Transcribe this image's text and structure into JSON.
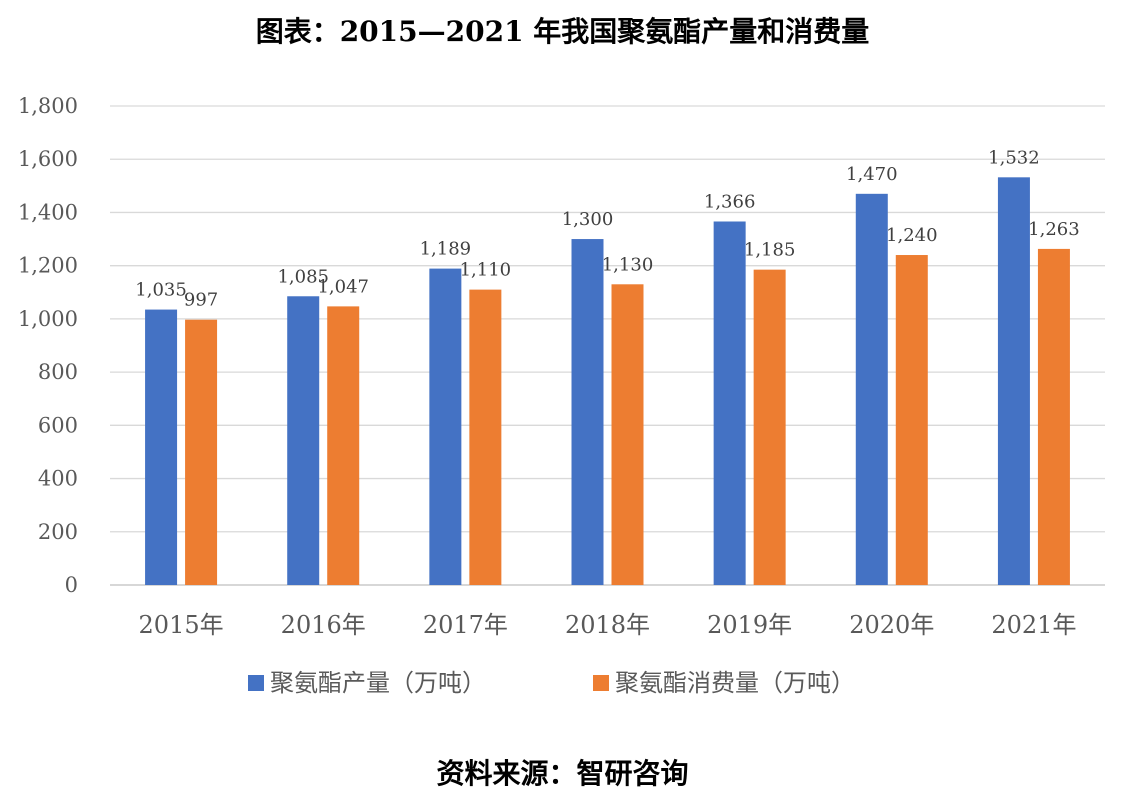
{
  "title": "图表：2015—2021 年我国聚氨酯产量和消费量",
  "source": "资料来源：智研咨询",
  "chart_data": {
    "type": "bar",
    "categories": [
      "2015年",
      "2016年",
      "2017年",
      "2018年",
      "2019年",
      "2020年",
      "2021年"
    ],
    "series": [
      {
        "name": "聚氨酯产量（万吨）",
        "color": "#4472C4",
        "values": [
          1035,
          1085,
          1189,
          1300,
          1366,
          1470,
          1532
        ],
        "labels": [
          "1,035",
          "1,085",
          "1,189",
          "1,300",
          "1,366",
          "1,470",
          "1,532"
        ]
      },
      {
        "name": "聚氨酯消费量（万吨）",
        "color": "#ED7D31",
        "values": [
          997,
          1047,
          1110,
          1130,
          1185,
          1240,
          1263
        ],
        "labels": [
          "997",
          "1,047",
          "1,110",
          "1,130",
          "1,185",
          "1,240",
          "1,263"
        ]
      }
    ],
    "ylim": [
      0,
      1800
    ],
    "yticks": [
      "0",
      "200",
      "400",
      "600",
      "800",
      "1,000",
      "1,200",
      "1,400",
      "1,600",
      "1,800"
    ],
    "grid": true,
    "legend_position": "bottom"
  }
}
